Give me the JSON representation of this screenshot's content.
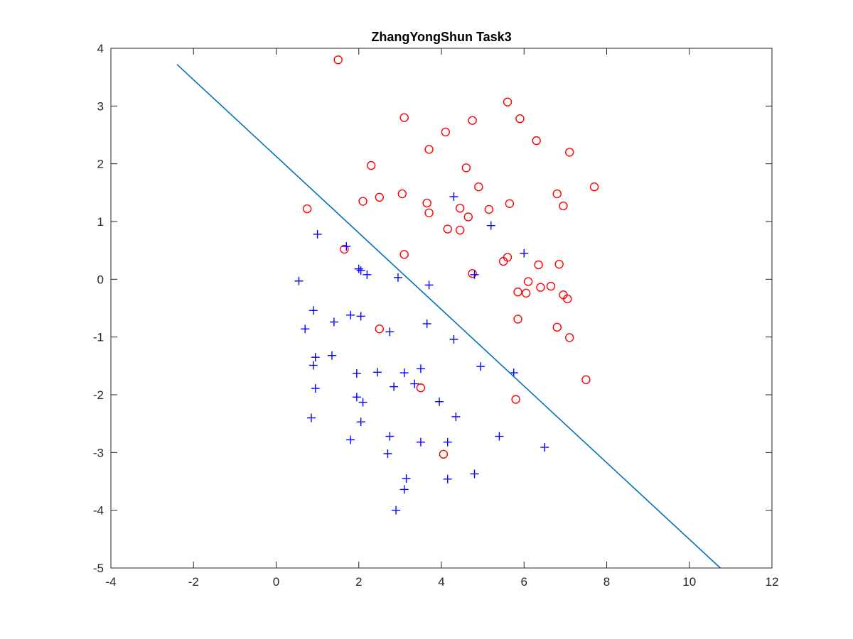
{
  "chart_data": {
    "type": "scatter",
    "title": "ZhangYongShun Task3",
    "xlabel": "",
    "ylabel": "",
    "xlim": [
      -4,
      12
    ],
    "ylim": [
      -5,
      4
    ],
    "xticks": [
      -4,
      -2,
      0,
      2,
      4,
      6,
      8,
      10,
      12
    ],
    "yticks": [
      -5,
      -4,
      -3,
      -2,
      -1,
      0,
      1,
      2,
      3,
      4
    ],
    "xtick_labels": [
      "-4",
      "-2",
      "0",
      "2",
      "4",
      "6",
      "8",
      "10",
      "12"
    ],
    "ytick_labels": [
      "-5",
      "-4",
      "-3",
      "-2",
      "-1",
      "0",
      "1",
      "2",
      "3",
      "4"
    ],
    "grid": false,
    "box": true,
    "series": [
      {
        "marker": "circle",
        "color": "#ff0000",
        "points": [
          [
            1.5,
            3.8
          ],
          [
            3.1,
            2.8
          ],
          [
            4.1,
            2.55
          ],
          [
            4.75,
            2.75
          ],
          [
            5.6,
            3.07
          ],
          [
            5.9,
            2.78
          ],
          [
            6.3,
            2.4
          ],
          [
            7.1,
            2.2
          ],
          [
            3.7,
            2.25
          ],
          [
            2.3,
            1.97
          ],
          [
            4.6,
            1.93
          ],
          [
            4.9,
            1.6
          ],
          [
            7.7,
            1.6
          ],
          [
            6.8,
            1.48
          ],
          [
            3.05,
            1.48
          ],
          [
            2.5,
            1.42
          ],
          [
            2.1,
            1.35
          ],
          [
            3.65,
            1.32
          ],
          [
            4.45,
            1.23
          ],
          [
            5.15,
            1.21
          ],
          [
            5.65,
            1.31
          ],
          [
            6.95,
            1.27
          ],
          [
            0.75,
            1.22
          ],
          [
            3.7,
            1.15
          ],
          [
            4.65,
            1.08
          ],
          [
            4.15,
            0.87
          ],
          [
            4.45,
            0.85
          ],
          [
            1.65,
            0.52
          ],
          [
            3.1,
            0.43
          ],
          [
            5.6,
            0.38
          ],
          [
            5.5,
            0.31
          ],
          [
            6.35,
            0.25
          ],
          [
            6.85,
            0.26
          ],
          [
            4.75,
            0.1
          ],
          [
            6.1,
            -0.04
          ],
          [
            5.85,
            -0.22
          ],
          [
            6.05,
            -0.24
          ],
          [
            6.4,
            -0.14
          ],
          [
            6.65,
            -0.12
          ],
          [
            6.95,
            -0.27
          ],
          [
            7.05,
            -0.34
          ],
          [
            5.85,
            -0.69
          ],
          [
            6.8,
            -0.83
          ],
          [
            7.1,
            -1.01
          ],
          [
            2.5,
            -0.86
          ],
          [
            7.5,
            -1.74
          ],
          [
            3.5,
            -1.88
          ],
          [
            5.8,
            -2.08
          ],
          [
            4.05,
            -3.03
          ]
        ]
      },
      {
        "marker": "plus",
        "color": "#0000ff",
        "points": [
          [
            4.3,
            1.43
          ],
          [
            5.2,
            0.93
          ],
          [
            1.0,
            0.78
          ],
          [
            1.7,
            0.57
          ],
          [
            6.0,
            0.45
          ],
          [
            2.0,
            0.18
          ],
          [
            2.05,
            0.15
          ],
          [
            2.2,
            0.08
          ],
          [
            4.8,
            0.08
          ],
          [
            2.95,
            0.03
          ],
          [
            0.55,
            -0.03
          ],
          [
            3.7,
            -0.1
          ],
          [
            0.9,
            -0.54
          ],
          [
            1.8,
            -0.62
          ],
          [
            2.05,
            -0.64
          ],
          [
            1.4,
            -0.74
          ],
          [
            3.65,
            -0.77
          ],
          [
            0.7,
            -0.86
          ],
          [
            2.75,
            -0.91
          ],
          [
            4.3,
            -1.04
          ],
          [
            0.95,
            -1.35
          ],
          [
            1.35,
            -1.32
          ],
          [
            0.9,
            -1.49
          ],
          [
            4.95,
            -1.51
          ],
          [
            3.5,
            -1.55
          ],
          [
            2.45,
            -1.61
          ],
          [
            1.95,
            -1.63
          ],
          [
            3.1,
            -1.62
          ],
          [
            5.75,
            -1.62
          ],
          [
            0.95,
            -1.89
          ],
          [
            2.85,
            -1.86
          ],
          [
            3.35,
            -1.81
          ],
          [
            1.95,
            -2.04
          ],
          [
            2.1,
            -2.13
          ],
          [
            3.95,
            -2.12
          ],
          [
            4.35,
            -2.38
          ],
          [
            0.85,
            -2.4
          ],
          [
            2.05,
            -2.47
          ],
          [
            2.75,
            -2.72
          ],
          [
            5.4,
            -2.72
          ],
          [
            1.8,
            -2.78
          ],
          [
            3.5,
            -2.82
          ],
          [
            4.15,
            -2.82
          ],
          [
            6.5,
            -2.91
          ],
          [
            2.7,
            -3.02
          ],
          [
            4.8,
            -3.37
          ],
          [
            3.15,
            -3.45
          ],
          [
            4.15,
            -3.46
          ],
          [
            3.1,
            -3.64
          ],
          [
            2.9,
            -4.0
          ]
        ]
      },
      {
        "marker": "line",
        "color": "#0072bd",
        "points": [
          [
            -2.4,
            3.72
          ],
          [
            10.75,
            -5.0
          ]
        ]
      }
    ]
  }
}
